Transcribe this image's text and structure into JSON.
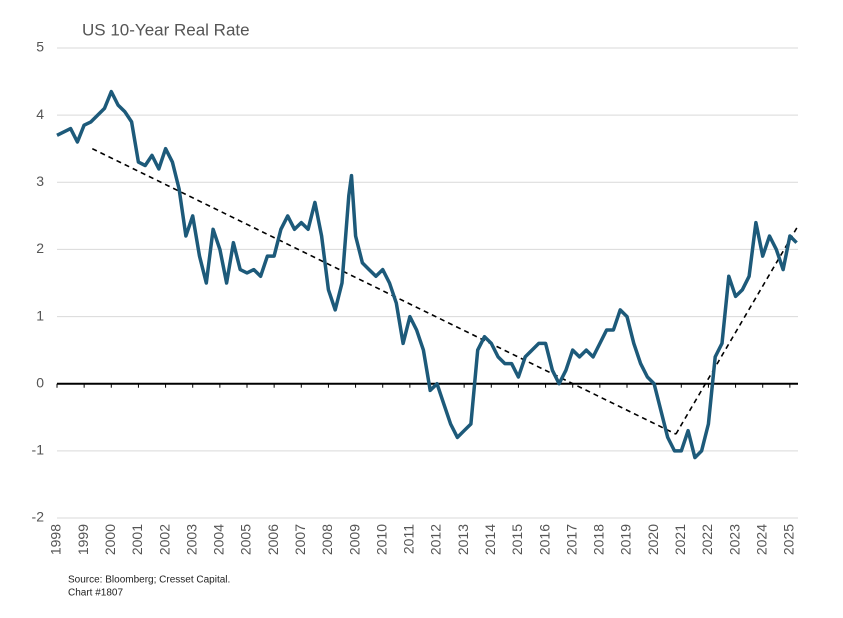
{
  "chart_data": {
    "type": "line",
    "title": "US 10-Year Real Rate",
    "source": "Source: Bloomberg; Cresset Capital.",
    "note": "Chart #1807",
    "x": [
      1998.0,
      1998.25,
      1998.5,
      1998.75,
      1999.0,
      1999.25,
      1999.5,
      1999.75,
      2000.0,
      2000.25,
      2000.5,
      2000.75,
      2001.0,
      2001.25,
      2001.5,
      2001.75,
      2002.0,
      2002.25,
      2002.5,
      2002.75,
      2003.0,
      2003.25,
      2003.5,
      2003.75,
      2004.0,
      2004.25,
      2004.5,
      2004.75,
      2005.0,
      2005.25,
      2005.5,
      2005.75,
      2006.0,
      2006.25,
      2006.5,
      2006.75,
      2007.0,
      2007.25,
      2007.5,
      2007.75,
      2008.0,
      2008.25,
      2008.5,
      2008.75,
      2008.85,
      2009.0,
      2009.25,
      2009.5,
      2009.75,
      2010.0,
      2010.25,
      2010.5,
      2010.75,
      2011.0,
      2011.25,
      2011.5,
      2011.75,
      2012.0,
      2012.25,
      2012.5,
      2012.75,
      2013.0,
      2013.25,
      2013.5,
      2013.75,
      2014.0,
      2014.25,
      2014.5,
      2014.75,
      2015.0,
      2015.25,
      2015.5,
      2015.75,
      2016.0,
      2016.25,
      2016.5,
      2016.75,
      2017.0,
      2017.25,
      2017.5,
      2017.75,
      2018.0,
      2018.25,
      2018.5,
      2018.75,
      2019.0,
      2019.25,
      2019.5,
      2019.75,
      2020.0,
      2020.25,
      2020.5,
      2020.75,
      2021.0,
      2021.25,
      2021.5,
      2021.75,
      2022.0,
      2022.25,
      2022.5,
      2022.75,
      2023.0,
      2023.25,
      2023.5,
      2023.75,
      2024.0,
      2024.25,
      2024.5,
      2024.75,
      2025.0,
      2025.25
    ],
    "series": [
      {
        "color": "#1d5a7a",
        "values": [
          3.7,
          3.75,
          3.8,
          3.6,
          3.85,
          3.9,
          4.0,
          4.1,
          4.35,
          4.15,
          4.05,
          3.9,
          3.3,
          3.25,
          3.4,
          3.2,
          3.5,
          3.3,
          2.9,
          2.2,
          2.5,
          1.9,
          1.5,
          2.3,
          2.0,
          1.5,
          2.1,
          1.7,
          1.65,
          1.7,
          1.6,
          1.9,
          1.9,
          2.3,
          2.5,
          2.3,
          2.4,
          2.3,
          2.7,
          2.2,
          1.4,
          1.1,
          1.5,
          2.8,
          3.1,
          2.2,
          1.8,
          1.7,
          1.6,
          1.7,
          1.5,
          1.2,
          0.6,
          1.0,
          0.8,
          0.5,
          -0.1,
          0.0,
          -0.3,
          -0.6,
          -0.8,
          -0.7,
          -0.6,
          0.5,
          0.7,
          0.6,
          0.4,
          0.3,
          0.3,
          0.1,
          0.4,
          0.5,
          0.6,
          0.6,
          0.2,
          0.0,
          0.2,
          0.5,
          0.4,
          0.5,
          0.4,
          0.6,
          0.8,
          0.8,
          1.1,
          1.0,
          0.6,
          0.3,
          0.1,
          0.0,
          -0.4,
          -0.8,
          -1.0,
          -1.0,
          -0.7,
          -1.1,
          -1.0,
          -0.6,
          0.4,
          0.6,
          1.6,
          1.3,
          1.4,
          1.6,
          2.4,
          1.9,
          2.2,
          2.0,
          1.7,
          2.2,
          2.1
        ]
      }
    ],
    "trend_lines": [
      {
        "color": "#000000",
        "x": [
          1999.3,
          2020.8
        ],
        "values": [
          3.5,
          -0.75
        ]
      },
      {
        "color": "#000000",
        "x": [
          2020.8,
          2025.3
        ],
        "values": [
          -0.75,
          2.35
        ]
      }
    ],
    "xlim": [
      1998,
      2025.3
    ],
    "xticks": [
      1998,
      1999,
      2000,
      2001,
      2002,
      2003,
      2004,
      2005,
      2006,
      2007,
      2008,
      2009,
      2010,
      2011,
      2012,
      2013,
      2014,
      2015,
      2016,
      2017,
      2018,
      2019,
      2020,
      2021,
      2022,
      2023,
      2024,
      2025
    ],
    "ylim": [
      -2,
      5
    ],
    "yticks": [
      -2,
      -1,
      0,
      1,
      2,
      3,
      4,
      5
    ],
    "grid": true
  }
}
